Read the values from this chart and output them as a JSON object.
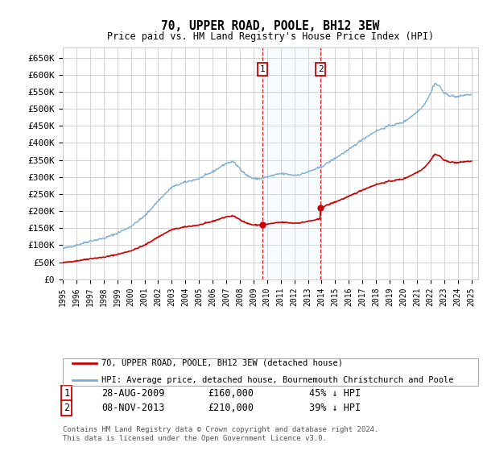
{
  "title": "70, UPPER ROAD, POOLE, BH12 3EW",
  "subtitle": "Price paid vs. HM Land Registry's House Price Index (HPI)",
  "ylabel_ticks": [
    "£0",
    "£50K",
    "£100K",
    "£150K",
    "£200K",
    "£250K",
    "£300K",
    "£350K",
    "£400K",
    "£450K",
    "£500K",
    "£550K",
    "£600K",
    "£650K"
  ],
  "ytick_values": [
    0,
    50000,
    100000,
    150000,
    200000,
    250000,
    300000,
    350000,
    400000,
    450000,
    500000,
    550000,
    600000,
    650000
  ],
  "ylim": [
    0,
    680000
  ],
  "sale1_date": "28-AUG-2009",
  "sale1_price": 160000,
  "sale1_pct": "45% ↓ HPI",
  "sale2_date": "08-NOV-2013",
  "sale2_price": 210000,
  "sale2_pct": "39% ↓ HPI",
  "red_line_label": "70, UPPER ROAD, POOLE, BH12 3EW (detached house)",
  "blue_line_label": "HPI: Average price, detached house, Bournemouth Christchurch and Poole",
  "footnote": "Contains HM Land Registry data © Crown copyright and database right 2024.\nThis data is licensed under the Open Government Licence v3.0.",
  "bg_color": "#ffffff",
  "grid_color": "#cccccc",
  "red_color": "#cc0000",
  "blue_color": "#7aaed6",
  "shade_color": "#ddeeff",
  "marker_box_color": "#cc0000"
}
